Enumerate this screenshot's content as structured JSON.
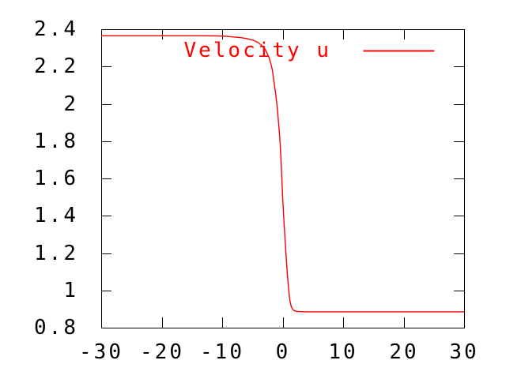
{
  "figure": {
    "background": "#ffffff",
    "border_color": "#000000",
    "tick_color": "#000000",
    "label_color": "#000000"
  },
  "legend": {
    "label": "Velocity u",
    "series_color": "#ff0000",
    "position": "top-right-inside"
  },
  "chart_data": {
    "type": "line",
    "title": "",
    "xlabel": "",
    "ylabel": "",
    "xlim": [
      -30,
      30
    ],
    "ylim": [
      0.8,
      2.4
    ],
    "grid": false,
    "legend_position": "top-right-inside",
    "x_ticks": {
      "values": [
        -30,
        -20,
        -10,
        0,
        10,
        20,
        30
      ],
      "labels": [
        "-30",
        "-20",
        "-10",
        "0",
        "10",
        "20",
        "30"
      ]
    },
    "y_ticks": {
      "values": [
        0.8,
        1.0,
        1.2,
        1.4,
        1.6,
        1.8,
        2.0,
        2.2,
        2.4
      ],
      "labels": [
        "0.8",
        "1",
        "1.2",
        "1.4",
        "1.6",
        "1.8",
        "2",
        "2.2",
        "2.4"
      ]
    },
    "series": [
      {
        "name": "Velocity u",
        "color": "#ff0000",
        "left_asymptote": 2.365,
        "right_asymptote": 0.885,
        "points": [
          [
            -30,
            2.365
          ],
          [
            -27,
            2.365
          ],
          [
            -24,
            2.365
          ],
          [
            -21,
            2.365
          ],
          [
            -18,
            2.365
          ],
          [
            -15,
            2.365
          ],
          [
            -13,
            2.365
          ],
          [
            -11,
            2.364
          ],
          [
            -10,
            2.363
          ],
          [
            -9,
            2.361
          ],
          [
            -8,
            2.358
          ],
          [
            -7,
            2.355
          ],
          [
            -6,
            2.35
          ],
          [
            -5,
            2.342
          ],
          [
            -4.5,
            2.336
          ],
          [
            -4,
            2.327
          ],
          [
            -3.5,
            2.315
          ],
          [
            -3,
            2.297
          ],
          [
            -2.6,
            2.274
          ],
          [
            -2.3,
            2.252
          ],
          [
            -2,
            2.222
          ],
          [
            -1.7,
            2.182
          ],
          [
            -1.4,
            2.11
          ],
          [
            -1.2,
            2.065
          ],
          [
            -1,
            2.01
          ],
          [
            -0.8,
            1.945
          ],
          [
            -0.6,
            1.87
          ],
          [
            -0.4,
            1.785
          ],
          [
            -0.2,
            1.65
          ],
          [
            0,
            1.5
          ],
          [
            0.2,
            1.38
          ],
          [
            0.4,
            1.27
          ],
          [
            0.6,
            1.17
          ],
          [
            0.8,
            1.08
          ],
          [
            1,
            1.0
          ],
          [
            1.2,
            0.945
          ],
          [
            1.4,
            0.916
          ],
          [
            1.6,
            0.902
          ],
          [
            1.8,
            0.894
          ],
          [
            2,
            0.89
          ],
          [
            2.4,
            0.887
          ],
          [
            3,
            0.886
          ],
          [
            4,
            0.885
          ],
          [
            6,
            0.885
          ],
          [
            9,
            0.885
          ],
          [
            12,
            0.885
          ],
          [
            15,
            0.885
          ],
          [
            18,
            0.885
          ],
          [
            21,
            0.885
          ],
          [
            24,
            0.885
          ],
          [
            27,
            0.885
          ],
          [
            30,
            0.885
          ]
        ]
      }
    ]
  }
}
